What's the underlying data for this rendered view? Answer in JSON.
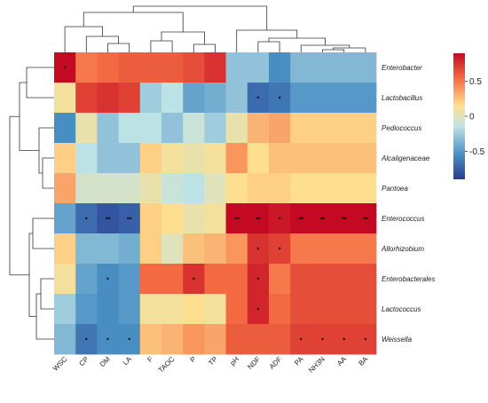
{
  "chart_data": {
    "type": "heatmap",
    "title": "",
    "xlabel": "",
    "ylabel": "",
    "rows": [
      "Enterobacter",
      "Lactobacillus",
      "Pediococcus",
      "Alcaligenaceae",
      "Pantoea",
      "Enterococcus",
      "Allorhizobium",
      "Enterobacterales",
      "Lactococcus",
      "Weissella"
    ],
    "columns": [
      "WSC",
      "CP",
      "DM",
      "LA",
      "F",
      "TAOC",
      "P",
      "TP",
      "pH",
      "NDF",
      "ADF",
      "PA",
      "NH3N",
      "AA",
      "BA"
    ],
    "values": [
      [
        0.9,
        0.5,
        0.55,
        0.6,
        0.6,
        0.6,
        0.65,
        0.75,
        -0.3,
        -0.3,
        -0.55,
        -0.35,
        -0.35,
        -0.35,
        -0.35
      ],
      [
        0.1,
        0.7,
        0.75,
        0.7,
        -0.25,
        -0.15,
        -0.45,
        -0.4,
        -0.3,
        -0.7,
        -0.65,
        -0.5,
        -0.5,
        -0.5,
        -0.5
      ],
      [
        -0.55,
        0.05,
        -0.3,
        -0.15,
        -0.15,
        -0.3,
        -0.1,
        -0.25,
        0.05,
        0.3,
        0.35,
        0.2,
        0.2,
        0.2,
        0.2
      ],
      [
        0.2,
        -0.15,
        -0.3,
        -0.3,
        0.2,
        0.1,
        0.05,
        0.1,
        0.4,
        0.15,
        0.25,
        0.25,
        0.25,
        0.25,
        0.25
      ],
      [
        0.35,
        -0.05,
        -0.05,
        -0.05,
        0.05,
        -0.1,
        -0.15,
        0.0,
        0.15,
        0.2,
        0.2,
        0.15,
        0.15,
        0.15,
        0.15
      ],
      [
        -0.45,
        -0.7,
        -0.8,
        -0.75,
        0.2,
        0.15,
        0.05,
        0.1,
        0.9,
        0.9,
        0.85,
        0.95,
        0.95,
        0.95,
        0.95
      ],
      [
        0.2,
        -0.35,
        -0.35,
        -0.4,
        0.2,
        0.0,
        0.25,
        0.3,
        0.4,
        0.75,
        0.7,
        0.5,
        0.5,
        0.5,
        0.5
      ],
      [
        0.1,
        -0.45,
        -0.55,
        -0.5,
        0.55,
        0.55,
        0.75,
        0.55,
        0.55,
        0.8,
        0.5,
        0.65,
        0.65,
        0.65,
        0.65
      ],
      [
        -0.25,
        -0.5,
        -0.55,
        -0.5,
        0.1,
        0.1,
        0.15,
        0.1,
        0.55,
        0.8,
        0.55,
        0.65,
        0.65,
        0.65,
        0.65
      ],
      [
        -0.35,
        -0.65,
        -0.55,
        -0.55,
        0.25,
        0.3,
        0.4,
        0.35,
        0.6,
        0.6,
        0.6,
        0.7,
        0.7,
        0.7,
        0.7
      ]
    ],
    "significance": [
      [
        "*",
        "",
        "",
        "",
        "",
        "",
        "",
        "",
        "",
        "",
        "",
        "",
        "",
        "",
        ""
      ],
      [
        "",
        "",
        "",
        "",
        "",
        "",
        "",
        "",
        "",
        "*",
        "*",
        "",
        "",
        "",
        ""
      ],
      [
        "",
        "",
        "",
        "",
        "",
        "",
        "",
        "",
        "",
        "",
        "",
        "",
        "",
        "",
        ""
      ],
      [
        "",
        "",
        "",
        "",
        "",
        "",
        "",
        "",
        "",
        "",
        "",
        "",
        "",
        "",
        ""
      ],
      [
        "",
        "",
        "",
        "",
        "",
        "",
        "",
        "",
        "",
        "",
        "",
        "",
        "",
        "",
        ""
      ],
      [
        "",
        "*",
        "**",
        "**",
        "",
        "",
        "",
        "",
        "**",
        "**",
        "*",
        "**",
        "**",
        "**",
        "**"
      ],
      [
        "",
        "",
        "",
        "",
        "",
        "",
        "",
        "",
        "",
        "*",
        "*",
        "",
        "",
        "",
        ""
      ],
      [
        "",
        "",
        "*",
        "",
        "",
        "",
        "*",
        "",
        "",
        "*",
        "",
        "",
        "",
        "",
        ""
      ],
      [
        "",
        "",
        "",
        "",
        "",
        "",
        "",
        "",
        "",
        "*",
        "",
        "",
        "",
        "",
        ""
      ],
      [
        "",
        "*",
        "*",
        "*",
        "",
        "",
        "",
        "",
        "",
        "",
        "",
        "*",
        "*",
        "*",
        "*"
      ]
    ],
    "colorbar": {
      "range": [
        -0.9,
        0.9
      ],
      "ticks": [
        0.5,
        0,
        -0.5
      ],
      "colors": [
        "#2b3c93",
        "#4a90c4",
        "#bfe3e6",
        "#fee090",
        "#f46d43",
        "#c40a22"
      ]
    },
    "dendrograms": {
      "rows": true,
      "columns": true
    },
    "legend": "right"
  }
}
